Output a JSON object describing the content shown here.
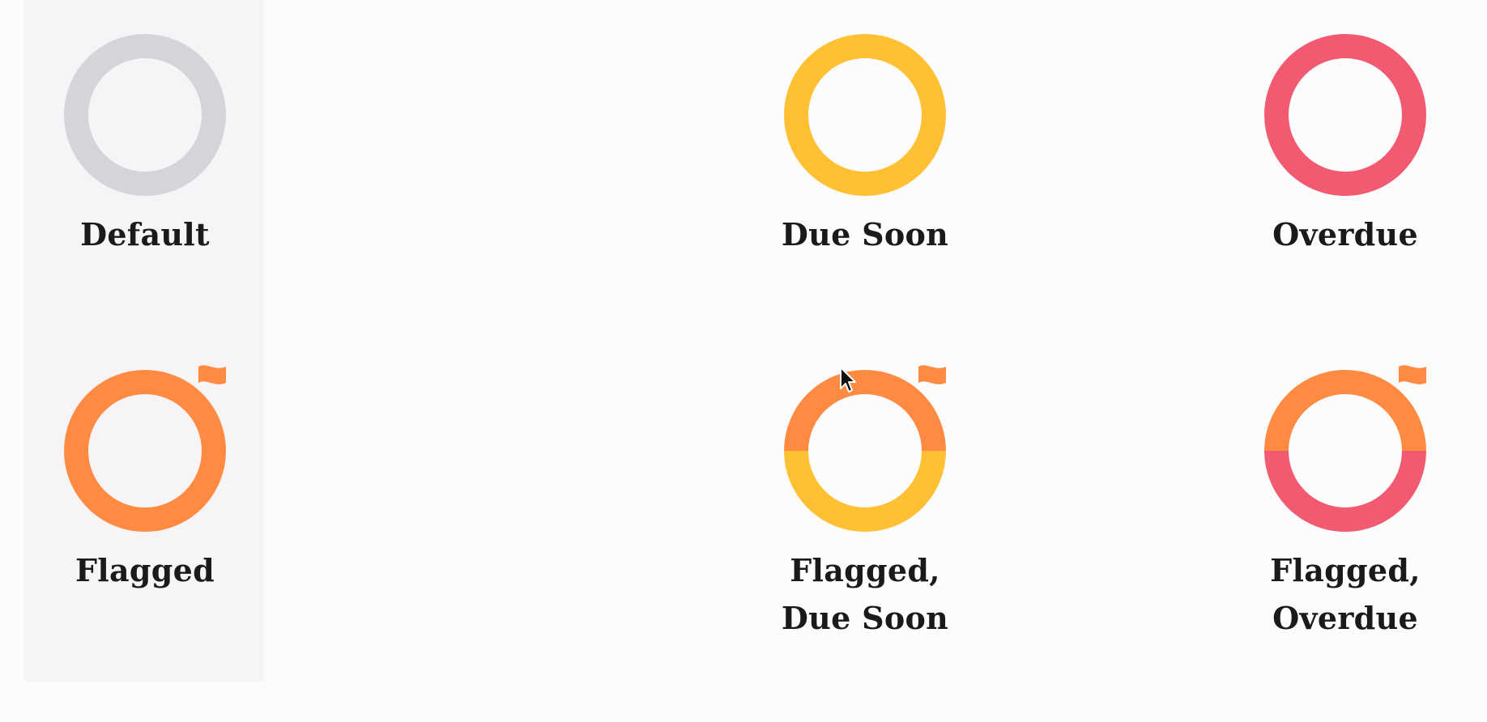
{
  "states": {
    "default": {
      "label": "Default"
    },
    "due_soon": {
      "label": "Due Soon"
    },
    "overdue": {
      "label": "Overdue"
    },
    "flagged": {
      "label": "Flagged"
    },
    "flagged_due_soon": {
      "line1": "Flagged,",
      "line2": "Due Soon"
    },
    "flagged_overdue": {
      "line1": "Flagged,",
      "line2": "Overdue"
    }
  },
  "colors": {
    "default_ring": "#d6d4d8",
    "due_soon": "#ffc033",
    "overdue": "#f25a72",
    "flagged": "#ff8a42",
    "highlight_bg": "#f6f4f7"
  },
  "icons": {
    "ring": "status-ring-icon",
    "flag": "flag-icon",
    "cursor": "mouse-pointer-icon"
  }
}
